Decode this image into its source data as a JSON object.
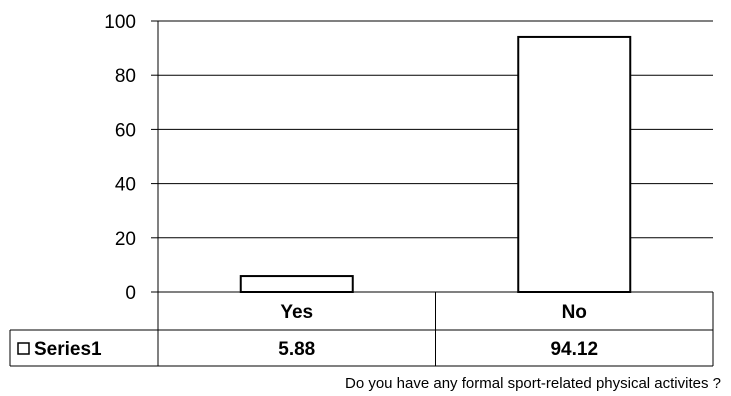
{
  "chart_data": {
    "type": "bar",
    "categories": [
      "Yes",
      "No"
    ],
    "series": [
      {
        "name": "Series1",
        "values": [
          5.88,
          94.12
        ]
      }
    ],
    "xlabel": "Do you have any formal sport-related physical activites ?",
    "ylabel": "",
    "ylim": [
      0,
      100
    ],
    "yticks": [
      0,
      20,
      40,
      60,
      80,
      100
    ],
    "grid": true,
    "data_table": true,
    "bar_fill": "#ffffff",
    "bar_stroke": "#000000"
  }
}
